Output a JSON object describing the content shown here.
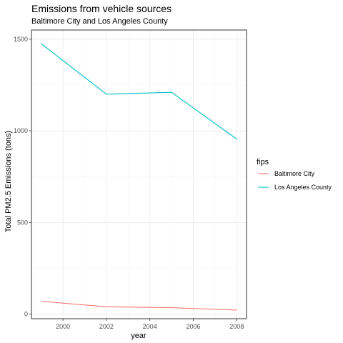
{
  "chart_data": {
    "type": "line",
    "title": "Emissions from vehicle sources",
    "subtitle": "Baltimore City and Los Angeles County",
    "xlabel": "year",
    "ylabel": "Total PM2.5 Emissions (tons)",
    "x": [
      1999,
      2002,
      2005,
      2008
    ],
    "xlim": [
      1998.55,
      2008.45
    ],
    "ylim": [
      -25,
      1550
    ],
    "xticks": [
      2000,
      2002,
      2004,
      2006,
      2008
    ],
    "yticks": [
      0,
      500,
      1000,
      1500
    ],
    "grid": true,
    "legend": {
      "title": "fips",
      "position": "right"
    },
    "series": [
      {
        "name": "Baltimore City",
        "color": "#F8766D",
        "values": [
          70,
          40,
          35,
          22
        ]
      },
      {
        "name": "Los Angeles County",
        "color": "#00BFC4",
        "values": [
          1475,
          1200,
          1210,
          955
        ]
      }
    ]
  }
}
